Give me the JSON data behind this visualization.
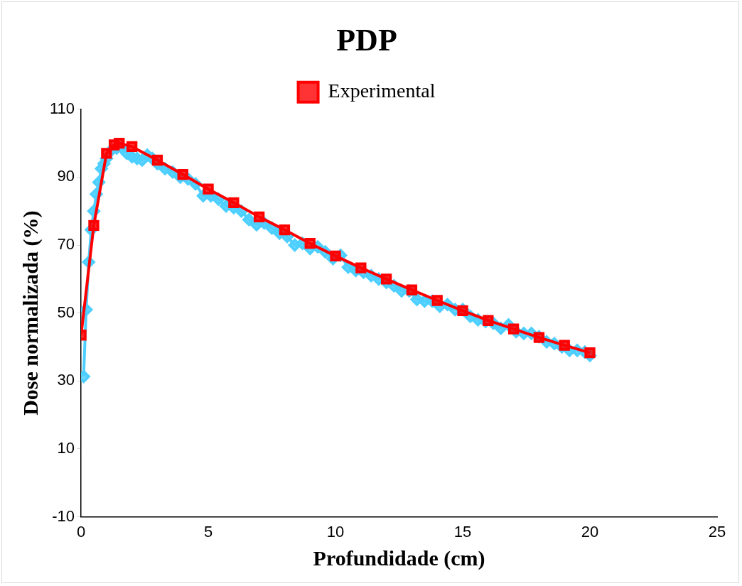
{
  "chart_data": {
    "type": "line",
    "title": "PDP",
    "xlabel": "Profundidade (cm)",
    "ylabel": "Dose normalizada (%)",
    "xlim": [
      0,
      25
    ],
    "xticks": [
      0,
      5,
      10,
      15,
      20,
      25
    ],
    "ylim": [
      -10,
      110
    ],
    "yticks": [
      -10,
      10,
      30,
      50,
      70,
      90,
      110
    ],
    "grid": false,
    "legend": "top",
    "series": [
      {
        "color": "#4dcfff",
        "marker": "diamond",
        "x": [
          0.1,
          0.2,
          0.3,
          0.4,
          0.5,
          0.6,
          0.7,
          0.8,
          0.9,
          1.0,
          1.2,
          1.4,
          1.6,
          1.8,
          2.0,
          2.2,
          2.4,
          2.6,
          2.8,
          3.0,
          3.3,
          3.6,
          3.9,
          4.2,
          4.5,
          4.8,
          5.1,
          5.4,
          5.7,
          6.0,
          6.3,
          6.6,
          6.9,
          7.2,
          7.5,
          7.8,
          8.1,
          8.4,
          8.7,
          9.0,
          9.3,
          9.6,
          9.9,
          10.2,
          10.5,
          10.8,
          11.1,
          11.4,
          11.7,
          12.0,
          12.3,
          12.6,
          12.9,
          13.2,
          13.5,
          13.8,
          14.1,
          14.4,
          14.7,
          15.0,
          15.3,
          15.6,
          15.9,
          16.2,
          16.5,
          16.8,
          17.1,
          17.4,
          17.7,
          18.0,
          18.3,
          18.6,
          18.9,
          19.2,
          19.5,
          19.8,
          20.0
        ],
        "values": [
          31.3,
          51,
          65,
          74.5,
          80,
          85,
          88.5,
          92.5,
          94,
          95.5,
          98,
          98.5,
          98.8,
          97,
          96,
          95.5,
          95,
          96.5,
          95.5,
          94,
          92.5,
          91.5,
          90,
          89.5,
          88,
          84.5,
          84.5,
          83.5,
          81.5,
          81,
          80,
          77.5,
          76,
          76.5,
          75,
          73.5,
          72.5,
          70,
          70.5,
          69,
          69.5,
          68,
          66,
          67,
          63.5,
          62.5,
          62,
          61,
          60,
          59,
          58,
          56.5,
          56.5,
          54,
          53.5,
          53.5,
          52,
          52.5,
          51,
          51,
          49,
          48,
          47.5,
          47,
          45.5,
          46.5,
          44.5,
          44,
          44,
          43,
          41.5,
          41,
          40,
          39,
          39,
          38.5,
          37.5
        ]
      },
      {
        "name": "Experimental",
        "color": "#ff0000",
        "marker": "square",
        "x": [
          0,
          0.5,
          1,
          1.3,
          1.5,
          2,
          3,
          4,
          5,
          6,
          7,
          8,
          9,
          10,
          11,
          12,
          13,
          14,
          15,
          16,
          17,
          18,
          19,
          20
        ],
        "values": [
          43.5,
          75.8,
          97,
          99.5,
          100,
          99,
          95,
          90.8,
          86.5,
          82.5,
          78.3,
          74.5,
          70.5,
          66.8,
          63.3,
          60,
          56.8,
          53.7,
          50.7,
          47.8,
          45.3,
          42.8,
          40.5,
          38.3
        ]
      }
    ]
  }
}
